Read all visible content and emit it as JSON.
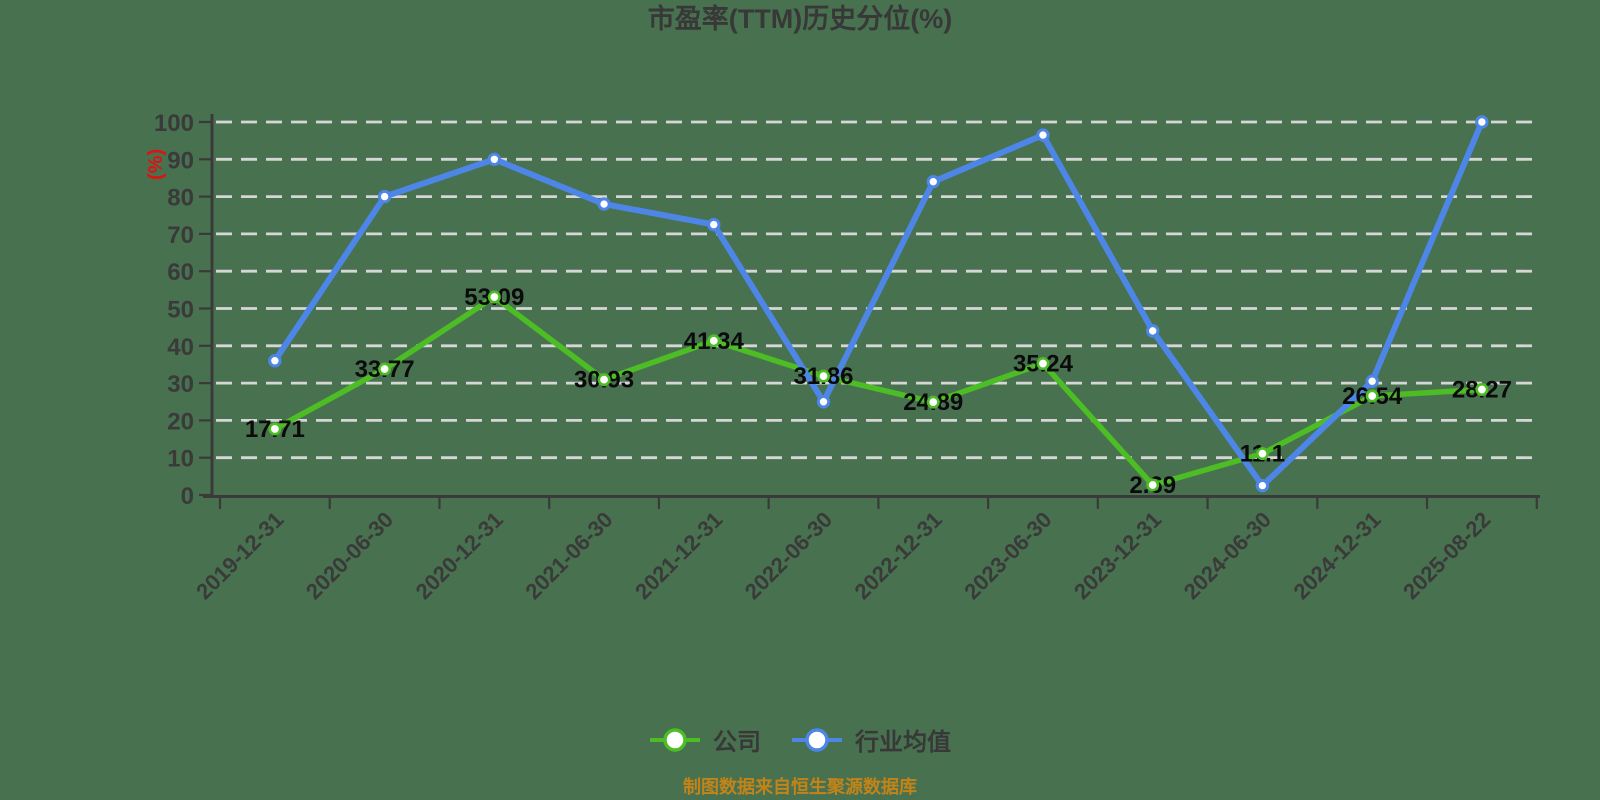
{
  "title": "市盈率(TTM)历史分位(%)",
  "source_note": "制图数据来自恒生聚源数据库",
  "y_axis": {
    "unit": "(%)",
    "min": 0,
    "max": 100,
    "step": 10
  },
  "legend": [
    {
      "label": "公司",
      "color": "#4CBD25"
    },
    {
      "label": "行业均值",
      "color": "#4E86E8"
    }
  ],
  "colors": {
    "background": "#48714F",
    "grid": "#D6D6D6",
    "axis": "#3A3A3A",
    "tick_text": "#3A3A3A",
    "data_label": "#0B0B0B",
    "unit_label": "#E01111",
    "title_text": "#383838",
    "legend_text": "#383838",
    "source_text": "#C28418",
    "company_line": "#4CBD25",
    "industry_line": "#4E86E8",
    "marker_fill": "#FFFFFF"
  },
  "chart_data": {
    "type": "line",
    "title": "市盈率(TTM)历史分位(%)",
    "categories": [
      "2019-12-31",
      "2020-06-30",
      "2020-12-31",
      "2021-06-30",
      "2021-12-31",
      "2022-06-30",
      "2022-12-31",
      "2023-06-30",
      "2023-12-31",
      "2024-06-30",
      "2024-12-31",
      "2025-08-22"
    ],
    "series": [
      {
        "name": "公司",
        "color": "#4CBD25",
        "values": [
          17.71,
          33.77,
          53.09,
          30.93,
          41.34,
          31.86,
          24.89,
          35.24,
          2.69,
          11.1,
          26.54,
          28.27
        ],
        "point_labels": [
          "17.71",
          "33.77",
          "53.09",
          "30.93",
          "41.34",
          "31.86",
          "24.89",
          "35.24",
          "2.69",
          "11.1",
          "26.54",
          "28.27"
        ],
        "labels_shown": true
      },
      {
        "name": "行业均值",
        "color": "#4E86E8",
        "values": [
          36,
          80,
          90,
          78,
          72.5,
          25,
          84,
          96.5,
          44,
          2.5,
          30.5,
          100
        ],
        "labels_shown": false,
        "values_estimated_from_gridlines": true
      }
    ],
    "ylabel": "(%)",
    "ylim": [
      0,
      100
    ],
    "ytick_step": 10,
    "grid": "horizontal-dashed",
    "legend_position": "bottom"
  }
}
